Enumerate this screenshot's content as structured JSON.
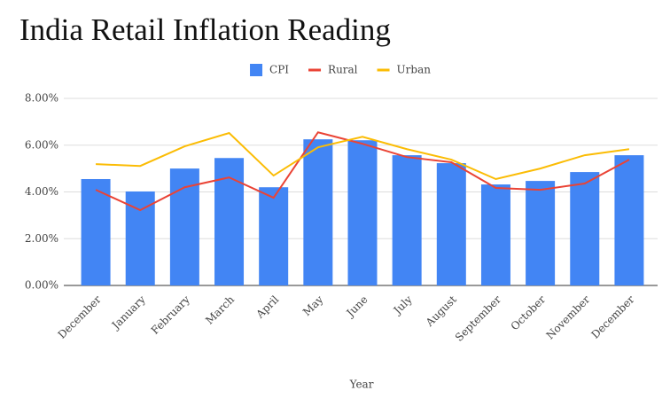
{
  "chart_data": {
    "type": "bar",
    "title": "India Retail Inflation Reading",
    "x_label": "Year",
    "categories": [
      "December",
      "January",
      "February",
      "March",
      "April",
      "May",
      "June",
      "July",
      "August",
      "September",
      "October",
      "November",
      "December"
    ],
    "series": [
      {
        "name": "CPI",
        "type": "bar",
        "color": "#4285f4",
        "values": [
          4.55,
          4.02,
          5.0,
          5.45,
          4.2,
          6.25,
          6.21,
          5.57,
          5.23,
          4.32,
          4.47,
          4.85,
          5.57
        ]
      },
      {
        "name": "Rural",
        "type": "line",
        "color": "#ea4335",
        "values": [
          4.09,
          3.22,
          4.2,
          4.62,
          3.75,
          6.55,
          6.06,
          5.49,
          5.27,
          4.17,
          4.09,
          4.36,
          5.38
        ]
      },
      {
        "name": "Urban",
        "type": "line",
        "color": "#fbbc04",
        "values": [
          5.19,
          5.11,
          5.95,
          6.52,
          4.7,
          5.91,
          6.36,
          5.83,
          5.38,
          4.55,
          5.0,
          5.57,
          5.83
        ]
      }
    ],
    "ylim": [
      0,
      8
    ],
    "yticks": [
      {
        "value": 0,
        "label": "0.00%"
      },
      {
        "value": 2,
        "label": "2.00%"
      },
      {
        "value": 4,
        "label": "4.00%"
      },
      {
        "value": 6,
        "label": "6.00%"
      },
      {
        "value": 8,
        "label": "8.00%"
      }
    ],
    "grid": true,
    "legend": "top"
  }
}
